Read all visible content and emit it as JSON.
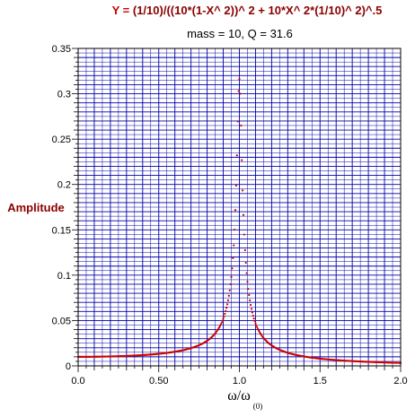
{
  "chart_data": {
    "type": "scatter",
    "title_prefix": "Y = ",
    "title_formula": "(1/10)/((10*(1-X^ 2))^ 2 + 10*X^ 2*(1/10)^ 2)^.5",
    "subtitle": "mass = 10, Q = 31.6",
    "ylabel": "Amplitude",
    "xlabel": "ω/ω",
    "xlabel_sub": "(0)",
    "xlim": [
      0,
      2.0
    ],
    "ylim": [
      0,
      0.35
    ],
    "x_ticks": [
      "0.0",
      "0.50",
      "1.0",
      "1.5",
      "2.0"
    ],
    "y_ticks": [
      "0",
      "0.05",
      "0.1",
      "0.15",
      "0.2",
      "0.25",
      "0.3",
      "0.35"
    ],
    "grid": true,
    "series_color": "#cc0000",
    "grid_color": "#0000aa",
    "series": [
      {
        "x_start": 0.0,
        "x_end": 2.0,
        "x_step": 0.005,
        "y_at_x0": 0.01,
        "peak_x": 1.0,
        "peak_y": 0.316,
        "y_at_x2": 0.0033
      }
    ]
  }
}
